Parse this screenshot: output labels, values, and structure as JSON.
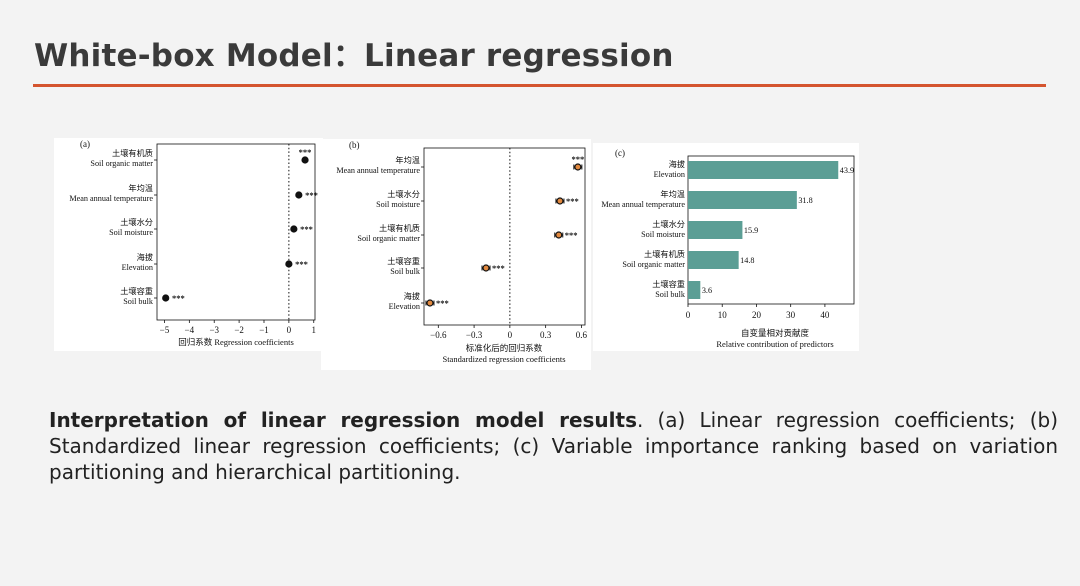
{
  "title": "White-box Model：Linear regression",
  "colors": {
    "accent": "#d4542e",
    "teal": "#5b9e95",
    "text": "#3a3a3a"
  },
  "chart_data": [
    {
      "type": "scatter",
      "panel_label": "(a)",
      "subtype": "coefficient-dot-plot",
      "categories": [
        {
          "cn": "土壤有机质",
          "en": "Soil organic matter"
        },
        {
          "cn": "年均温",
          "en": "Mean annual temperature"
        },
        {
          "cn": "土壤水分",
          "en": "Soil moisture"
        },
        {
          "cn": "海拔",
          "en": "Elevation"
        },
        {
          "cn": "土壤容重",
          "en": "Soil bulk"
        }
      ],
      "values": [
        0.65,
        0.4,
        0.2,
        0.0,
        -4.95
      ],
      "significance": [
        "***",
        "***",
        "***",
        "***",
        "***"
      ],
      "xlim": [
        -5.3,
        1.05
      ],
      "xticks": [
        -5,
        -4,
        -3,
        -2,
        -1,
        0,
        1
      ],
      "xtick_labels": [
        "−5",
        "−4",
        "−3",
        "−2",
        "−1",
        "0",
        "1"
      ],
      "xlabel": "回归系数 Regression coefficients",
      "reference_line": 0
    },
    {
      "type": "scatter",
      "panel_label": "(b)",
      "subtype": "coefficient-dot-plot",
      "categories": [
        {
          "cn": "年均温",
          "en": "Mean annual temperature"
        },
        {
          "cn": "土壤水分",
          "en": "Soil moisture"
        },
        {
          "cn": "土壤有机质",
          "en": "Soil organic matter"
        },
        {
          "cn": "土壤容重",
          "en": "Soil bulk"
        },
        {
          "cn": "海拔",
          "en": "Elevation"
        }
      ],
      "values": [
        0.57,
        0.42,
        0.41,
        -0.2,
        -0.67
      ],
      "significance": [
        "***",
        "***",
        "***",
        "***",
        "***"
      ],
      "xlim": [
        -0.72,
        0.63
      ],
      "xticks": [
        -0.6,
        -0.3,
        0,
        0.3,
        0.6
      ],
      "xtick_labels": [
        "−0.6",
        "−0.3",
        "0",
        "0.3",
        "0.6"
      ],
      "xlabel_cn": "标准化后的回归系数",
      "xlabel_en": "Standardized regression coefficients",
      "reference_line": 0
    },
    {
      "type": "bar",
      "panel_label": "(c)",
      "orientation": "horizontal",
      "categories": [
        {
          "cn": "海拔",
          "en": "Elevation"
        },
        {
          "cn": "年均温",
          "en": "Mean annual temperature"
        },
        {
          "cn": "土壤水分",
          "en": "Soil moisture"
        },
        {
          "cn": "土壤有机质",
          "en": "Soil organic matter"
        },
        {
          "cn": "土壤容重",
          "en": "Soil bulk"
        }
      ],
      "values": [
        43.9,
        31.8,
        15.9,
        14.8,
        3.6
      ],
      "value_labels": [
        "43.9",
        "31.8",
        "15.9",
        "14.8",
        "3.6"
      ],
      "xlim": [
        0,
        48.5
      ],
      "xticks": [
        0,
        10,
        20,
        30,
        40
      ],
      "xtick_labels": [
        "0",
        "10",
        "20",
        "30",
        "40"
      ],
      "xlabel_cn": "自变量相对贡献度",
      "xlabel_en": "Relative contribution of predictors"
    }
  ],
  "caption": {
    "bold": "Interpretation of linear regression model results",
    "rest": ". (a) Linear regression coefficients; (b) Standardized linear regression coefficients; (c) Variable importance ranking based on variation partitioning and hierarchical partitioning."
  }
}
